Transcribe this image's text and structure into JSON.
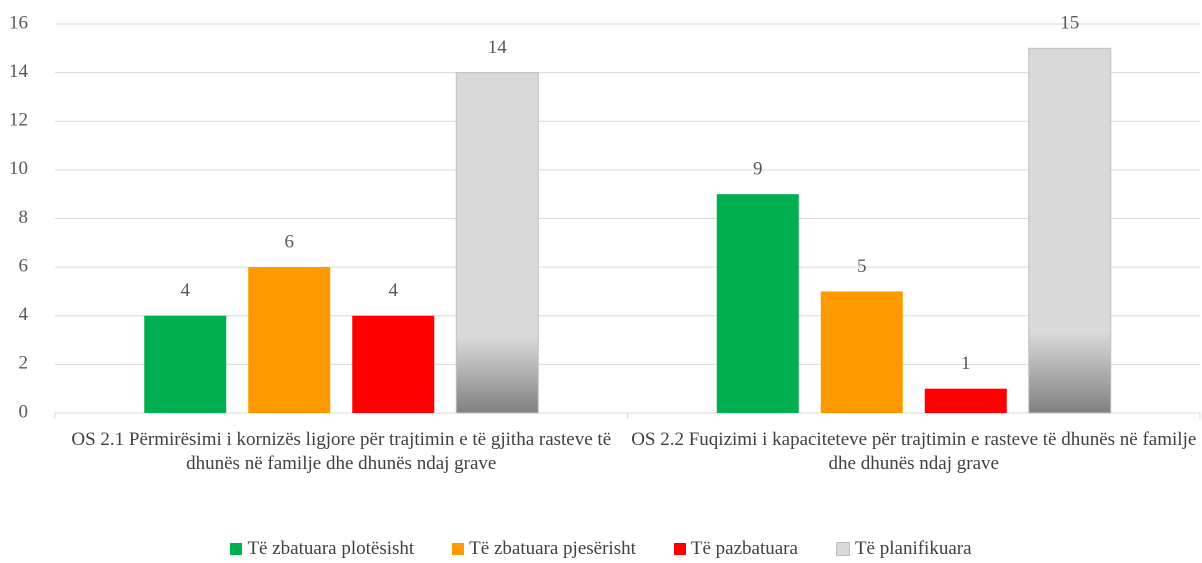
{
  "chart_data": {
    "type": "bar",
    "categories": [
      "OS 2.1 Përmirësimi i kornizës ligjore për trajtimin e të gjitha rasteve të dhunës në familje dhe dhunës ndaj grave",
      "OS 2.2 Fuqizimi i kapaciteteve për trajtimin e rasteve të dhunës në familje dhe dhunës ndaj grave"
    ],
    "series": [
      {
        "name": "Të zbatuara plotësisht",
        "color": "#00b050",
        "values": [
          4,
          9
        ]
      },
      {
        "name": "Të zbatuara pjesërisht",
        "color": "#ff9900",
        "values": [
          6,
          5
        ]
      },
      {
        "name": "Të pazbatuara",
        "color": "#ff0000",
        "values": [
          4,
          1
        ]
      },
      {
        "name": "Të planifikuara",
        "color": "#d9d9d9",
        "values": [
          14,
          15
        ]
      }
    ],
    "ylim": [
      0,
      16
    ],
    "yticks": [
      0,
      2,
      4,
      6,
      8,
      10,
      12,
      14,
      16
    ],
    "grid": true,
    "legend": "bottom"
  }
}
